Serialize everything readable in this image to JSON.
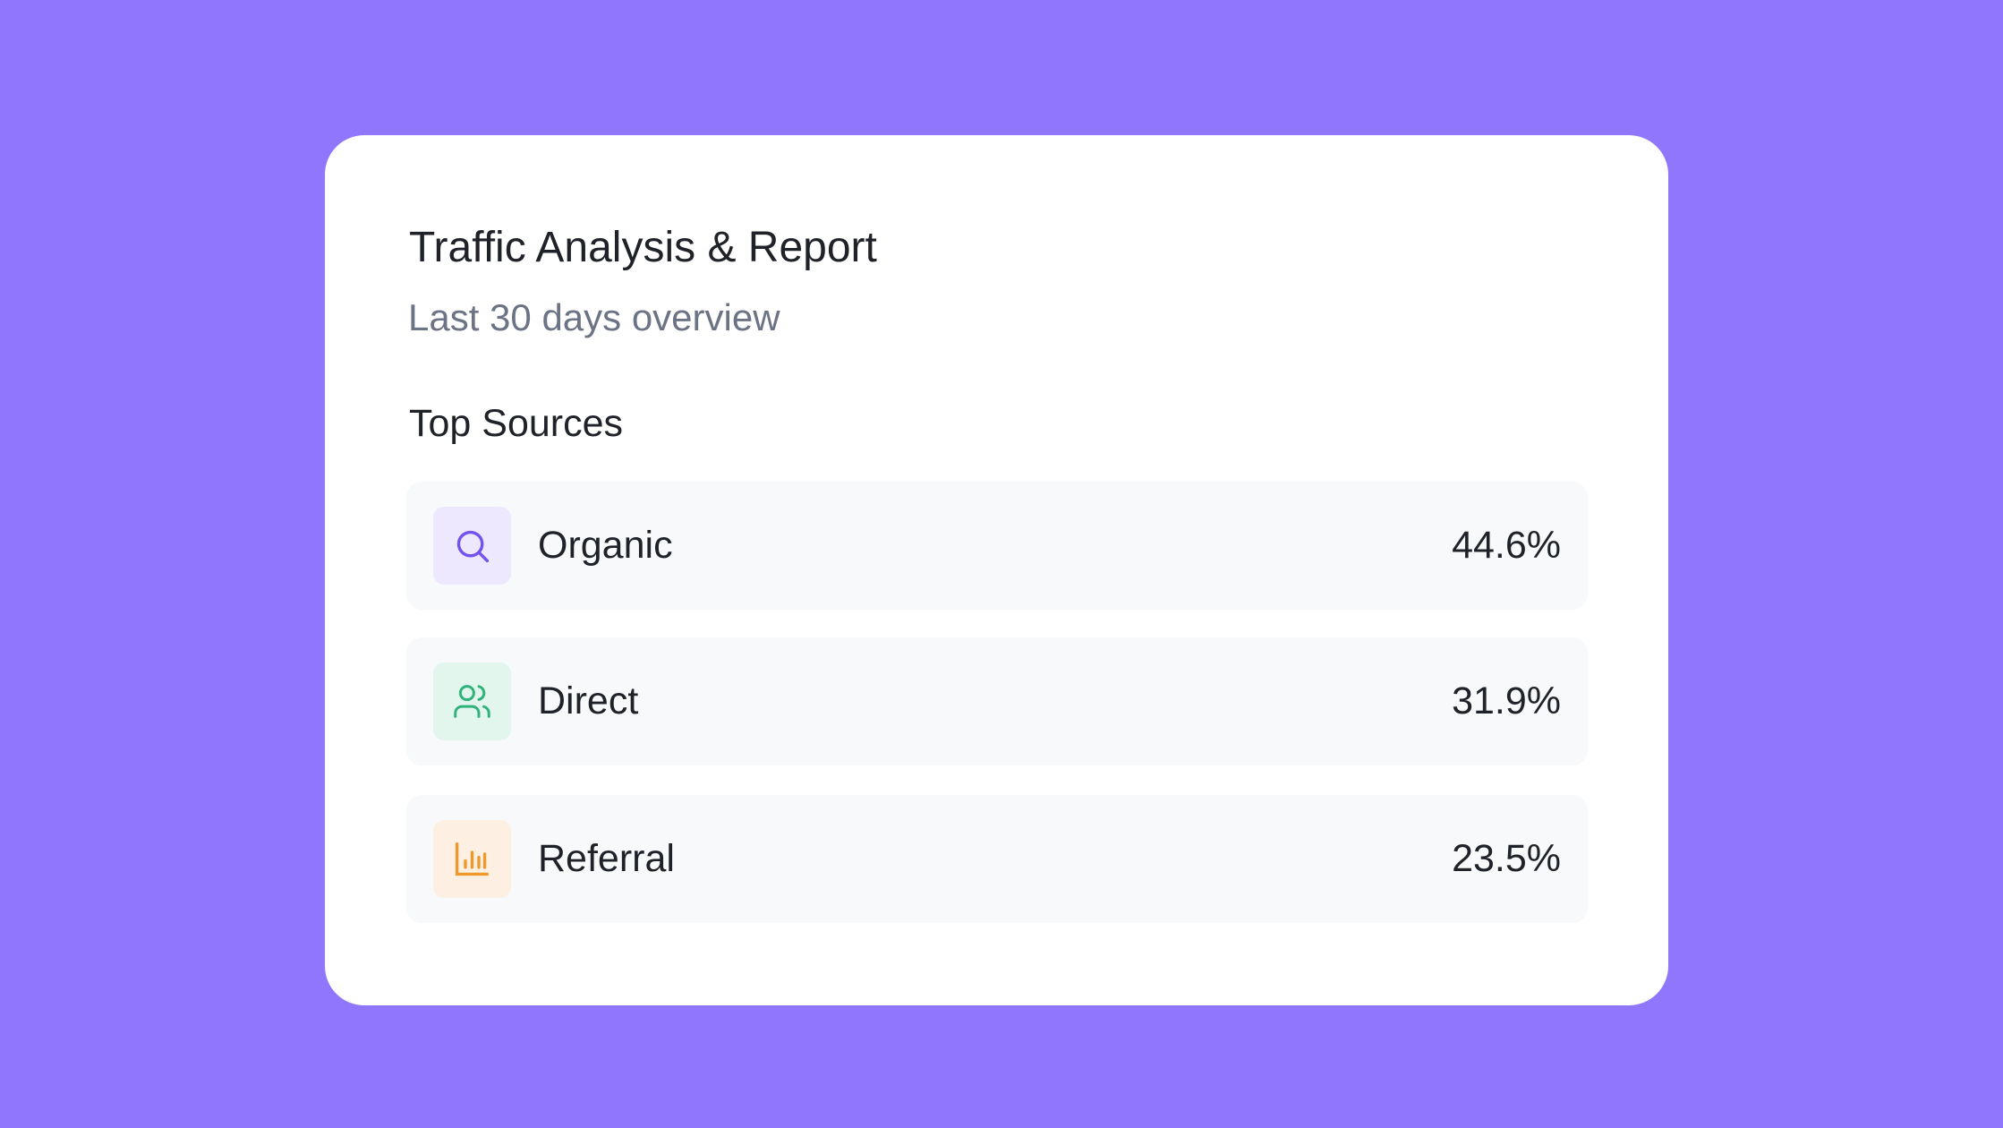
{
  "card": {
    "title": "Traffic Analysis & Report",
    "subtitle": "Last 30 days overview",
    "section_title": "Top Sources",
    "sources": [
      {
        "label": "Organic",
        "value": "44.6%"
      },
      {
        "label": "Direct",
        "value": "31.9%"
      },
      {
        "label": "Referral",
        "value": "23.5%"
      }
    ]
  }
}
